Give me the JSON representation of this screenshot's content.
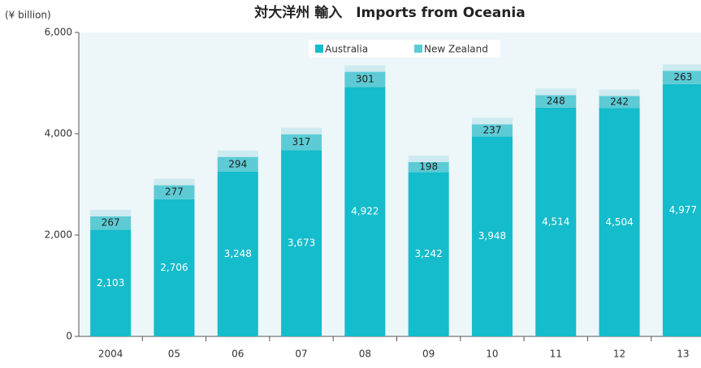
{
  "chart_data": {
    "type": "stacked_bar",
    "title": "対大洋州 輸入　Imports from Oceania",
    "y_label": "(¥ billion)",
    "categories": [
      "2004",
      "05",
      "06",
      "07",
      "08",
      "09",
      "10",
      "11",
      "12",
      "13"
    ],
    "series": [
      {
        "name": "Australia",
        "color": "#15bccb",
        "values": [
          2103,
          2706,
          3248,
          3673,
          4922,
          3242,
          3948,
          4514,
          4504,
          4977
        ],
        "value_labels": [
          "2,103",
          "2,706",
          "3,248",
          "3,673",
          "4,922",
          "3,242",
          "3,948",
          "4,514",
          "4,504",
          "4,977"
        ]
      },
      {
        "name": "New Zealand",
        "color": "#5ccbd5",
        "values": [
          267,
          277,
          294,
          317,
          301,
          198,
          237,
          248,
          242,
          263
        ]
      }
    ],
    "ylim": [
      0,
      6000
    ],
    "yticks": [
      0,
      {
        "value": 2000,
        "label": "2,000"
      },
      {
        "value": 4000,
        "label": "4,000"
      },
      {
        "value": 6000,
        "label": "6,000"
      }
    ]
  }
}
